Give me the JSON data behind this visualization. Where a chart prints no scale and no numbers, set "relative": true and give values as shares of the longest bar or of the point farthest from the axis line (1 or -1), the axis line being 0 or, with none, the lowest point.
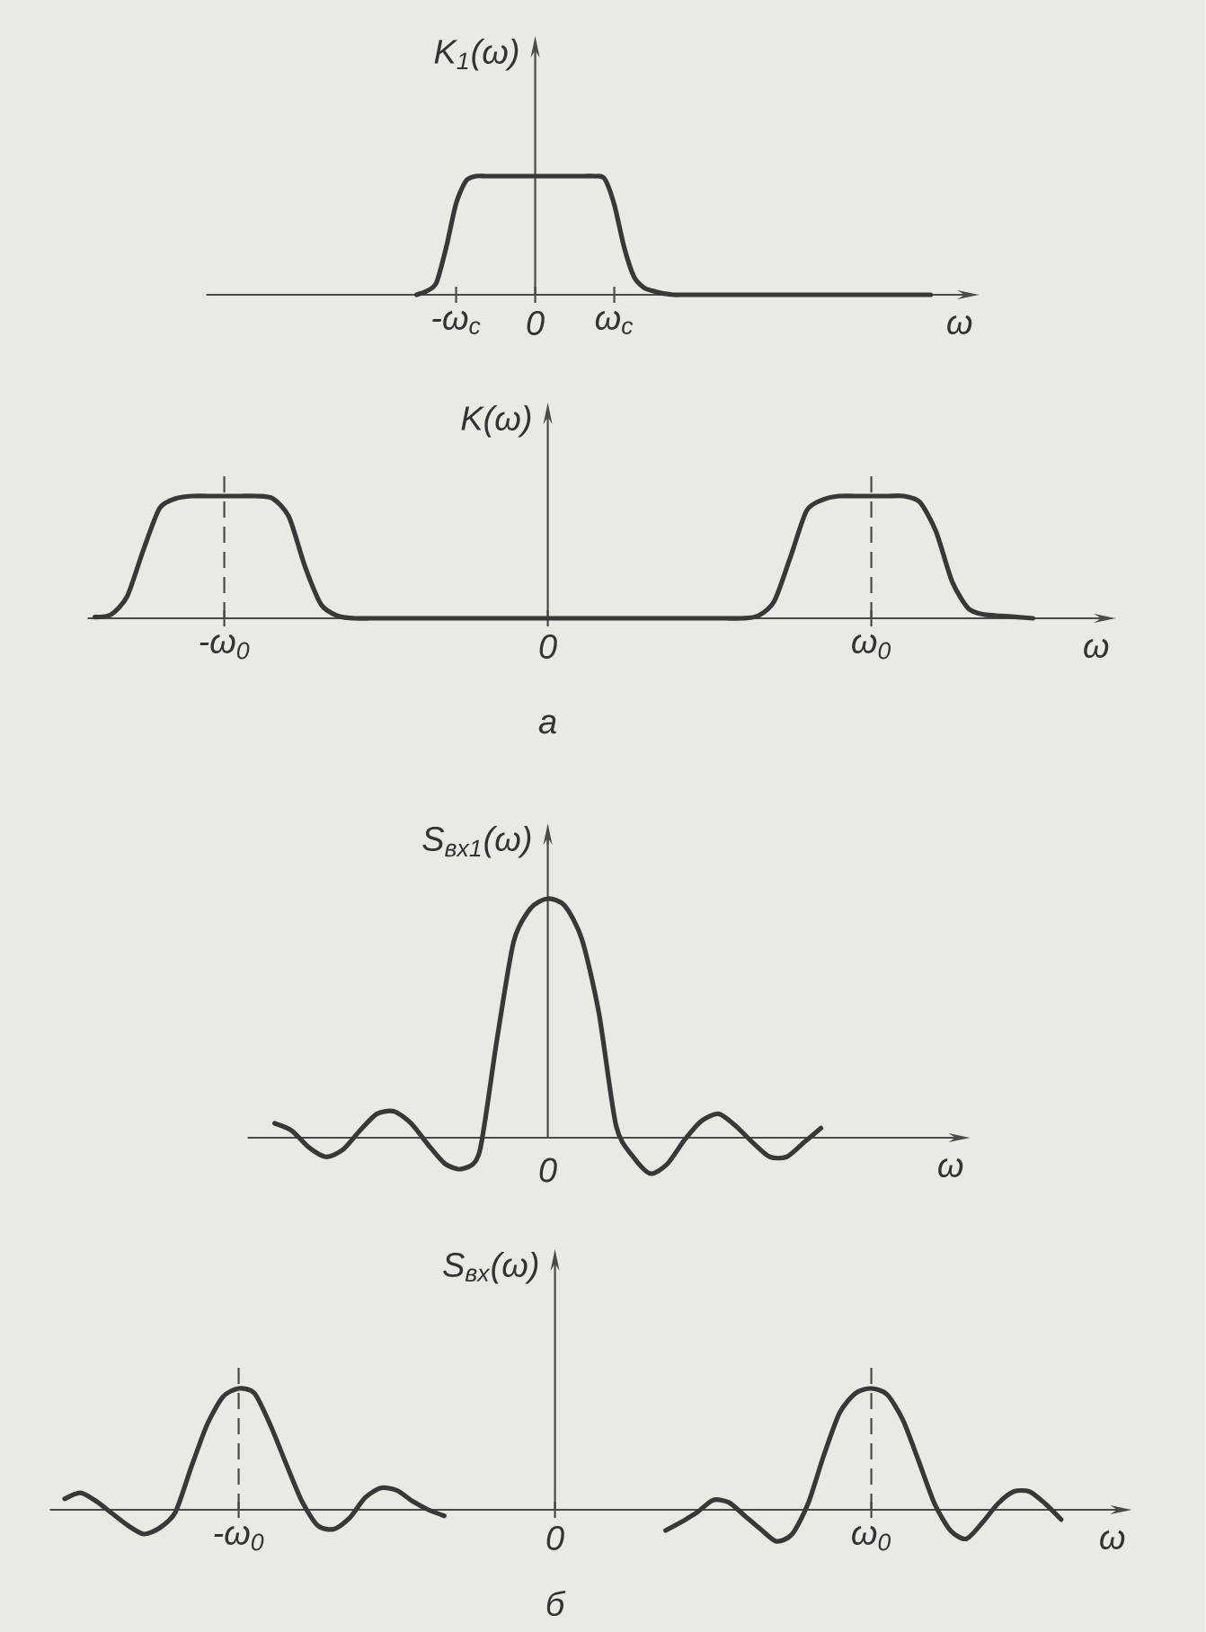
{
  "chart_data": [
    {
      "type": "line",
      "relative": true,
      "ylabel": "K$_{1}$(ω)",
      "xlabel": "ω",
      "categories": [
        null,
        null,
        null,
        null,
        "-ω$_{c}$",
        null,
        null,
        null,
        null,
        null,
        null,
        null,
        "0",
        null,
        null,
        null,
        null,
        null,
        null,
        null,
        "ω$_{c}$",
        null,
        null,
        null,
        null,
        null,
        null,
        null,
        null,
        null,
        null,
        null,
        null,
        null,
        null,
        null,
        null,
        null,
        null,
        null,
        null,
        null,
        null,
        null,
        null,
        null,
        null,
        null,
        null,
        null,
        null,
        null,
        null
      ],
      "series": [
        {
          "color": "#383838",
          "values": [
            0,
            0.03,
            0.1,
            0.4,
            0.77,
            0.96,
            1.0,
            1.0,
            1.0,
            1.0,
            1.0,
            1.0,
            1.0,
            1.0,
            1.0,
            1.0,
            1.0,
            1.0,
            1.0,
            0.98,
            0.76,
            0.4,
            0.15,
            0.06,
            0.03,
            0.01,
            0,
            0,
            0,
            0,
            0,
            0,
            0,
            0,
            0,
            0,
            0,
            0,
            0,
            0,
            0,
            0,
            0,
            0,
            0,
            0,
            0,
            0,
            0,
            0,
            0,
            0,
            0
          ]
        }
      ]
    },
    {
      "type": "line",
      "relative": true,
      "ylabel": "K(ω)",
      "xlabel": "ω",
      "categories": [
        null,
        null,
        null,
        null,
        null,
        null,
        null,
        null,
        "-ω$_{0}$",
        null,
        null,
        null,
        null,
        null,
        null,
        null,
        null,
        null,
        null,
        null,
        null,
        null,
        null,
        null,
        null,
        null,
        null,
        null,
        "0",
        null,
        null,
        null,
        null,
        null,
        null,
        null,
        null,
        null,
        null,
        null,
        null,
        null,
        null,
        null,
        null,
        null,
        null,
        null,
        "ω$_{0}$",
        null,
        null,
        null,
        null,
        null,
        null,
        null,
        null,
        null,
        null
      ],
      "ref_lines": [
        {
          "axis": "x",
          "value": "-ω$_{0}$",
          "line_style": "dashed"
        },
        {
          "axis": "x",
          "value": "ω$_{0}$",
          "line_style": "dashed"
        }
      ],
      "annotations": [
        "а"
      ],
      "series": [
        {
          "color": "#383838",
          "values": [
            0.01,
            0.03,
            0.18,
            0.56,
            0.9,
            0.98,
            1.0,
            1.0,
            1.0,
            1.0,
            1.0,
            0.98,
            0.83,
            0.42,
            0.11,
            0.02,
            0,
            0,
            0,
            0,
            0,
            0,
            0,
            0,
            0,
            0,
            0,
            0,
            0,
            0,
            0,
            0,
            0,
            0,
            0,
            0,
            0,
            0,
            0,
            0,
            0,
            0.02,
            0.14,
            0.5,
            0.88,
            0.97,
            1.0,
            1.0,
            1.0,
            1.0,
            1.0,
            0.95,
            0.71,
            0.3,
            0.08,
            0.03,
            0.02,
            0.01,
            0
          ]
        }
      ]
    },
    {
      "type": "line",
      "relative": true,
      "ylabel": "S$_{вх1}$(ω)",
      "xlabel": "ω",
      "annotations": [
        "0"
      ],
      "categories": [
        null,
        null,
        null,
        null,
        null,
        null,
        null,
        null,
        null,
        null,
        null,
        null,
        null,
        null,
        null,
        null,
        null,
        null,
        null,
        null,
        null,
        null,
        null,
        null,
        null,
        null,
        null,
        null,
        null,
        null,
        null,
        null,
        null
      ],
      "series": [
        {
          "color": "#383838",
          "values": [
            0.06,
            0.03,
            -0.04,
            -0.08,
            -0.05,
            0.03,
            0.1,
            0.11,
            0.06,
            -0.03,
            -0.11,
            -0.13,
            -0.06,
            0.4,
            0.82,
            0.96,
            1.0,
            0.97,
            0.83,
            0.52,
            0.05,
            -0.08,
            -0.15,
            -0.11,
            -0.01,
            0.07,
            0.1,
            0.05,
            -0.02,
            -0.08,
            -0.08,
            -0.02,
            0.04
          ]
        }
      ]
    },
    {
      "type": "line",
      "relative": true,
      "ylabel": "S$_{вх}$(ω)",
      "xlabel": "ω",
      "categories": [
        null,
        null,
        null,
        null,
        null,
        null,
        null,
        null,
        null,
        null,
        null,
        "-ω$_{0}$",
        null,
        null,
        null,
        null,
        null,
        null,
        null,
        null,
        null,
        null,
        null,
        null,
        null,
        null,
        null,
        null,
        null,
        null,
        null,
        "0",
        null,
        null,
        null,
        null,
        null,
        null,
        null,
        null,
        null,
        null,
        null,
        null,
        null,
        null,
        null,
        null,
        null,
        null,
        null,
        "ω$_{0}$",
        null,
        null,
        null,
        null,
        null,
        null,
        null,
        null,
        null,
        null,
        null,
        null
      ],
      "ref_lines": [
        {
          "axis": "x",
          "value": "-ω$_{0}$",
          "line_style": "dashed"
        },
        {
          "axis": "x",
          "value": "ω$_{0}$",
          "line_style": "dashed"
        }
      ],
      "annotations": [
        "б"
      ],
      "series": [
        {
          "color": "#383838",
          "values": [
            0.09,
            0.14,
            0.07,
            -0.03,
            -0.13,
            -0.2,
            -0.15,
            -0.02,
            0.35,
            0.7,
            0.93,
            1.0,
            0.96,
            0.7,
            0.38,
            0.07,
            -0.13,
            -0.16,
            -0.07,
            0.1,
            0.18,
            0.16,
            0.07,
            0.0,
            -0.05,
            null,
            null,
            null,
            null,
            null,
            null,
            null,
            null,
            null,
            null,
            null,
            null,
            null,
            -0.17,
            -0.1,
            -0.02,
            0.08,
            0.06,
            -0.05,
            -0.16,
            -0.26,
            -0.2,
            0.05,
            0.45,
            0.8,
            0.96,
            1.0,
            0.95,
            0.74,
            0.4,
            0.05,
            -0.17,
            -0.24,
            -0.11,
            0.05,
            0.15,
            0.15,
            0.05,
            -0.08
          ]
        }
      ]
    }
  ]
}
